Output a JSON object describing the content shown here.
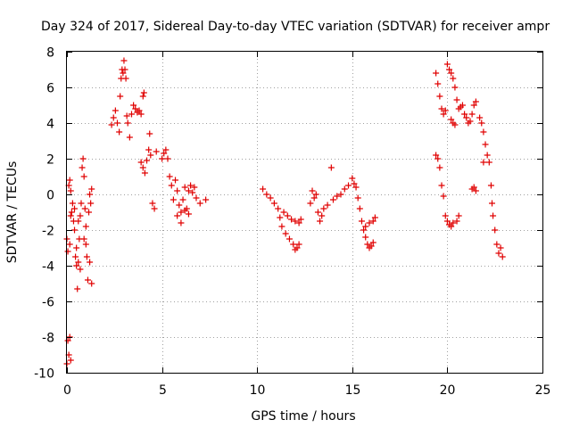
{
  "colors": {
    "series": "#e00000",
    "axis": "#000000",
    "grid": "#a0a0a0"
  },
  "chart_data": {
    "type": "scatter",
    "title": "Day 324 of 2017, Sidereal Day-to-day VTEC variation (SDTVAR) for receiver ampr",
    "xlabel": "GPS time / hours",
    "ylabel": "SDTVAR / TECUs",
    "xlim": [
      0,
      25
    ],
    "ylim": [
      -10,
      8
    ],
    "xticks": [
      0,
      5,
      10,
      15,
      20,
      25
    ],
    "yticks": [
      -10,
      -8,
      -6,
      -4,
      -2,
      0,
      2,
      4,
      6,
      8
    ],
    "grid": true,
    "marker": "plus",
    "series": [
      {
        "name": "SDTVAR",
        "points": [
          [
            0.0,
            -2.5
          ],
          [
            0.05,
            -3.2
          ],
          [
            0.1,
            0.5
          ],
          [
            0.15,
            0.8
          ],
          [
            0.2,
            0.2
          ],
          [
            0.25,
            -1.0
          ],
          [
            0.3,
            -0.5
          ],
          [
            0.35,
            -1.5
          ],
          [
            0.4,
            -2.0
          ],
          [
            0.45,
            -3.5
          ],
          [
            0.5,
            -4.0
          ],
          [
            0.55,
            -5.3
          ],
          [
            0.6,
            -3.8
          ],
          [
            0.65,
            -2.5
          ],
          [
            0.7,
            -1.2
          ],
          [
            0.75,
            -0.5
          ],
          [
            0.8,
            1.5
          ],
          [
            0.85,
            2.0
          ],
          [
            0.9,
            1.0
          ],
          [
            0.95,
            -0.8
          ],
          [
            1.0,
            -2.8
          ],
          [
            1.05,
            -3.5
          ],
          [
            1.1,
            -4.8
          ],
          [
            1.15,
            -1.0
          ],
          [
            1.2,
            0.0
          ],
          [
            1.25,
            -0.5
          ],
          [
            1.3,
            0.3
          ],
          [
            0.2,
            -1.2
          ],
          [
            0.4,
            -0.8
          ],
          [
            0.6,
            -1.5
          ],
          [
            0.9,
            -2.5
          ],
          [
            1.0,
            -1.8
          ],
          [
            0.15,
            -2.8
          ],
          [
            0.5,
            -3.0
          ],
          [
            0.7,
            -4.2
          ],
          [
            1.2,
            -3.8
          ],
          [
            1.3,
            -5.0
          ],
          [
            0.0,
            -9.5
          ],
          [
            0.05,
            -8.2
          ],
          [
            0.1,
            -9.0
          ],
          [
            0.15,
            -8.0
          ],
          [
            0.2,
            -9.3
          ],
          [
            2.35,
            3.9
          ],
          [
            2.45,
            4.3
          ],
          [
            2.55,
            4.7
          ],
          [
            2.65,
            4.0
          ],
          [
            2.75,
            3.5
          ],
          [
            2.8,
            5.5
          ],
          [
            2.85,
            6.5
          ],
          [
            2.9,
            7.0
          ],
          [
            2.95,
            6.8
          ],
          [
            3.0,
            7.5
          ],
          [
            3.05,
            7.0
          ],
          [
            3.1,
            6.5
          ],
          [
            3.15,
            4.4
          ],
          [
            3.2,
            4.0
          ],
          [
            3.3,
            3.2
          ],
          [
            3.4,
            4.5
          ],
          [
            3.5,
            5.0
          ],
          [
            3.6,
            4.8
          ],
          [
            3.7,
            4.6
          ],
          [
            3.8,
            4.7
          ],
          [
            3.9,
            4.5
          ],
          [
            4.0,
            5.5
          ],
          [
            4.05,
            5.7
          ],
          [
            3.9,
            1.8
          ],
          [
            4.0,
            1.5
          ],
          [
            4.1,
            1.2
          ],
          [
            4.2,
            1.9
          ],
          [
            4.3,
            2.5
          ],
          [
            4.35,
            3.4
          ],
          [
            4.4,
            2.2
          ],
          [
            4.5,
            -0.5
          ],
          [
            4.6,
            -0.8
          ],
          [
            4.7,
            2.4
          ],
          [
            5.0,
            2.0
          ],
          [
            5.1,
            2.3
          ],
          [
            5.2,
            2.5
          ],
          [
            5.3,
            2.0
          ],
          [
            5.4,
            1.0
          ],
          [
            5.5,
            0.5
          ],
          [
            5.6,
            -0.3
          ],
          [
            5.7,
            0.8
          ],
          [
            5.8,
            0.2
          ],
          [
            5.9,
            -0.6
          ],
          [
            6.0,
            -1.0
          ],
          [
            6.1,
            -0.3
          ],
          [
            6.2,
            0.4
          ],
          [
            6.3,
            -0.8
          ],
          [
            6.4,
            0.2
          ],
          [
            6.5,
            0.5
          ],
          [
            6.6,
            0.1
          ],
          [
            6.7,
            0.4
          ],
          [
            6.8,
            -0.2
          ],
          [
            7.0,
            -0.5
          ],
          [
            7.3,
            -0.3
          ],
          [
            5.8,
            -1.2
          ],
          [
            6.0,
            -1.6
          ],
          [
            6.2,
            -0.9
          ],
          [
            6.4,
            -1.1
          ],
          [
            10.3,
            0.3
          ],
          [
            10.5,
            0.0
          ],
          [
            10.7,
            -0.2
          ],
          [
            10.9,
            -0.5
          ],
          [
            11.1,
            -0.8
          ],
          [
            11.2,
            -1.3
          ],
          [
            11.3,
            -1.8
          ],
          [
            11.5,
            -2.2
          ],
          [
            11.7,
            -2.5
          ],
          [
            11.9,
            -2.8
          ],
          [
            12.0,
            -3.1
          ],
          [
            12.1,
            -3.0
          ],
          [
            12.2,
            -2.8
          ],
          [
            11.4,
            -1.0
          ],
          [
            11.6,
            -1.2
          ],
          [
            11.8,
            -1.4
          ],
          [
            12.0,
            -1.5
          ],
          [
            12.2,
            -1.6
          ],
          [
            12.3,
            -1.4
          ],
          [
            12.8,
            -0.5
          ],
          [
            12.9,
            0.2
          ],
          [
            13.0,
            -0.2
          ],
          [
            13.1,
            0.0
          ],
          [
            13.2,
            -1.0
          ],
          [
            13.3,
            -1.5
          ],
          [
            13.4,
            -1.2
          ],
          [
            13.5,
            -0.8
          ],
          [
            13.7,
            -0.6
          ],
          [
            13.9,
            1.5
          ],
          [
            14.0,
            -0.3
          ],
          [
            14.2,
            -0.1
          ],
          [
            14.4,
            0.0
          ],
          [
            14.6,
            0.3
          ],
          [
            14.8,
            0.5
          ],
          [
            15.0,
            0.9
          ],
          [
            15.1,
            0.6
          ],
          [
            15.2,
            0.4
          ],
          [
            15.3,
            -0.2
          ],
          [
            15.4,
            -0.8
          ],
          [
            15.5,
            -1.5
          ],
          [
            15.6,
            -2.0
          ],
          [
            15.7,
            -2.4
          ],
          [
            15.8,
            -2.8
          ],
          [
            15.9,
            -3.0
          ],
          [
            16.0,
            -2.9
          ],
          [
            16.1,
            -2.7
          ],
          [
            15.7,
            -1.8
          ],
          [
            15.9,
            -1.6
          ],
          [
            16.1,
            -1.5
          ],
          [
            16.2,
            -1.3
          ],
          [
            19.4,
            6.8
          ],
          [
            19.5,
            6.2
          ],
          [
            19.6,
            5.5
          ],
          [
            19.7,
            4.8
          ],
          [
            19.8,
            4.5
          ],
          [
            19.9,
            4.7
          ],
          [
            20.0,
            7.3
          ],
          [
            20.1,
            7.0
          ],
          [
            20.2,
            6.8
          ],
          [
            20.3,
            6.5
          ],
          [
            20.4,
            6.0
          ],
          [
            20.5,
            5.3
          ],
          [
            20.6,
            4.8
          ],
          [
            20.7,
            4.9
          ],
          [
            20.8,
            5.0
          ],
          [
            20.9,
            4.5
          ],
          [
            21.0,
            4.3
          ],
          [
            21.1,
            4.0
          ],
          [
            21.2,
            4.1
          ],
          [
            21.3,
            4.5
          ],
          [
            21.4,
            5.0
          ],
          [
            21.5,
            5.2
          ],
          [
            20.2,
            4.2
          ],
          [
            20.3,
            4.0
          ],
          [
            20.4,
            3.9
          ],
          [
            19.4,
            2.2
          ],
          [
            19.5,
            2.0
          ],
          [
            19.6,
            1.5
          ],
          [
            19.7,
            0.5
          ],
          [
            19.8,
            -0.1
          ],
          [
            19.9,
            -1.2
          ],
          [
            20.0,
            -1.5
          ],
          [
            20.1,
            -1.7
          ],
          [
            20.2,
            -1.8
          ],
          [
            20.3,
            -1.6
          ],
          [
            20.5,
            -1.5
          ],
          [
            20.6,
            -1.2
          ],
          [
            21.3,
            0.3
          ],
          [
            21.4,
            0.4
          ],
          [
            21.5,
            0.2
          ],
          [
            21.7,
            4.3
          ],
          [
            21.8,
            4.0
          ],
          [
            21.9,
            3.5
          ],
          [
            21.9,
            1.8
          ],
          [
            22.0,
            2.8
          ],
          [
            22.1,
            2.2
          ],
          [
            22.2,
            1.8
          ],
          [
            22.3,
            0.5
          ],
          [
            22.35,
            -0.5
          ],
          [
            22.4,
            -1.2
          ],
          [
            22.5,
            -2.0
          ],
          [
            22.6,
            -2.8
          ],
          [
            22.7,
            -3.3
          ],
          [
            22.8,
            -3.0
          ],
          [
            22.9,
            -3.5
          ]
        ]
      }
    ]
  }
}
